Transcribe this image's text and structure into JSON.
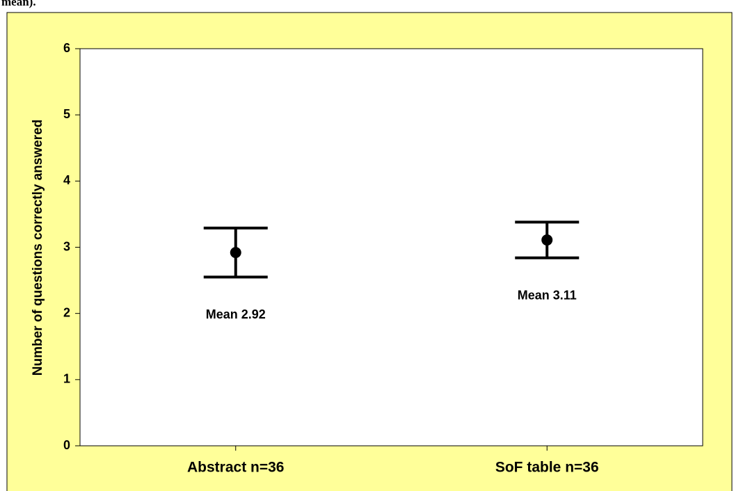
{
  "caption": "mean).",
  "chart_data": {
    "type": "errorbar",
    "categories": [
      "Abstract n=36",
      "SoF table n=36"
    ],
    "values": [
      2.92,
      3.11
    ],
    "errors": [
      0.37,
      0.27
    ],
    "value_labels": [
      "Mean 2.92",
      "Mean 3.11"
    ],
    "ylabel": "Number of questions correctly answered",
    "ylim": [
      0,
      6
    ],
    "yticks": [
      0,
      1,
      2,
      3,
      4,
      5,
      6
    ],
    "color": "#000000",
    "background": "#ffff99",
    "grid": false
  }
}
